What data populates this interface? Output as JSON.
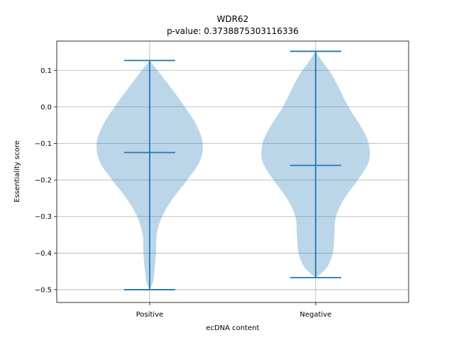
{
  "chart_data": {
    "type": "violin",
    "title": "WDR62",
    "subtitle": "p-value: 0.3738875303116336",
    "xlabel": "ecDNA content",
    "ylabel": "Essentiality score",
    "categories": [
      "Positive",
      "Negative"
    ],
    "ylim": [
      -0.535,
      0.18
    ],
    "yticks": [
      0.1,
      0.0,
      -0.1,
      -0.2,
      -0.3,
      -0.4,
      -0.5
    ],
    "ytick_labels": [
      "0.1",
      "0.0",
      "−0.1",
      "−0.2",
      "−0.3",
      "−0.4",
      "−0.5"
    ],
    "grid": true,
    "color": "#1f77b4",
    "fill_color": "#1f77b4",
    "fill_alpha": 0.3,
    "violins": [
      {
        "category": "Positive",
        "min": -0.5,
        "max": 0.127,
        "median": -0.125,
        "density": [
          [
            0.127,
            0.0
          ],
          [
            0.1,
            0.1
          ],
          [
            0.05,
            0.28
          ],
          [
            0.0,
            0.45
          ],
          [
            -0.05,
            0.6
          ],
          [
            -0.1,
            0.68
          ],
          [
            -0.15,
            0.64
          ],
          [
            -0.2,
            0.48
          ],
          [
            -0.25,
            0.3
          ],
          [
            -0.3,
            0.16
          ],
          [
            -0.35,
            0.09
          ],
          [
            -0.4,
            0.08
          ],
          [
            -0.45,
            0.06
          ],
          [
            -0.48,
            0.04
          ],
          [
            -0.5,
            0.0
          ]
        ]
      },
      {
        "category": "Negative",
        "min": -0.467,
        "max": 0.152,
        "median": -0.16,
        "density": [
          [
            0.152,
            0.0
          ],
          [
            0.12,
            0.1
          ],
          [
            0.08,
            0.23
          ],
          [
            0.0,
            0.42
          ],
          [
            -0.05,
            0.57
          ],
          [
            -0.1,
            0.68
          ],
          [
            -0.15,
            0.68
          ],
          [
            -0.2,
            0.54
          ],
          [
            -0.25,
            0.37
          ],
          [
            -0.3,
            0.26
          ],
          [
            -0.35,
            0.24
          ],
          [
            -0.4,
            0.22
          ],
          [
            -0.44,
            0.14
          ],
          [
            -0.467,
            0.0
          ]
        ]
      }
    ]
  }
}
